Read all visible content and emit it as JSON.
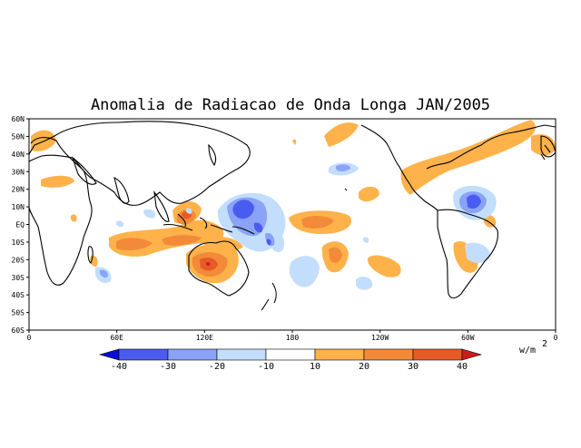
{
  "map": {
    "title": "Anomalia de Radiacao de Onda Longa JAN/2005",
    "lat_labels": [
      "60N",
      "50N",
      "40N",
      "30N",
      "20N",
      "10N",
      "EQ",
      "10S",
      "20S",
      "30S",
      "40S",
      "50S",
      "60S"
    ],
    "lon_labels": [
      "0",
      "60E",
      "120E",
      "180",
      "120W",
      "60W",
      "0"
    ],
    "projection": "cylindrical equidistant, 0 to 360 longitude, 60S to 60N"
  },
  "colorbar": {
    "units": "w/m",
    "units_exp": "2",
    "ticks": [
      "-40",
      "-30",
      "-20",
      "-10",
      "10",
      "20",
      "30",
      "40"
    ],
    "colors": [
      "#0b0bd6",
      "#4a5cf0",
      "#8aa3f7",
      "#c3defc",
      "#ffffff",
      "#ffb24a",
      "#f28a3a",
      "#e85a25",
      "#c81e1e"
    ]
  },
  "anomalies": {
    "palette": {
      "pos1": "#ffb24a",
      "pos2": "#f28a3a",
      "pos3": "#e85a25",
      "pos4": "#c81e1e",
      "neg1": "#c3defc",
      "neg2": "#8aa3f7",
      "neg3": "#4a5cf0",
      "neg4": "#0b0bd6"
    }
  }
}
